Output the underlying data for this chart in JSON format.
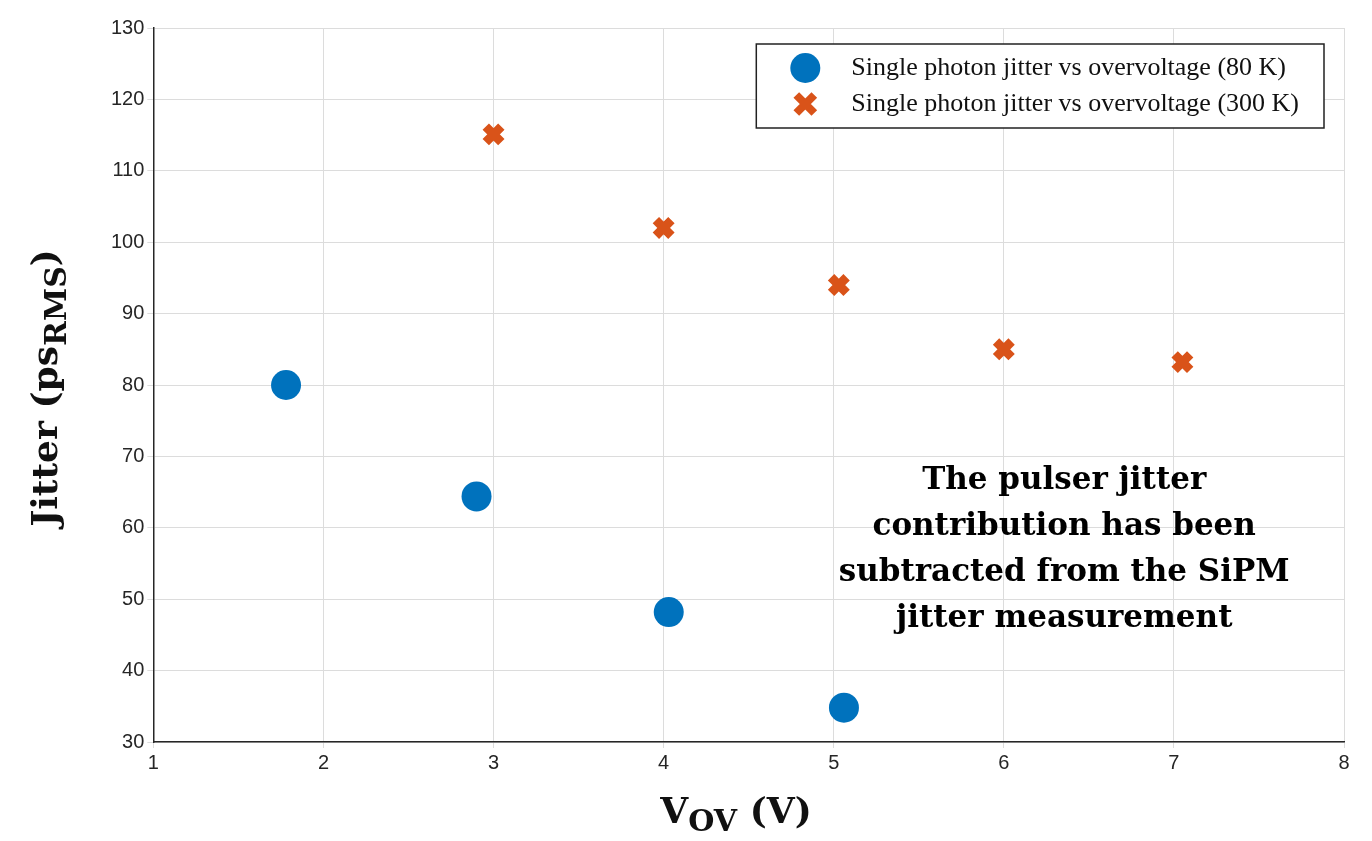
{
  "chart_data": {
    "type": "scatter",
    "xlabel": "V$_{OV}$ (V)",
    "ylabel": "Jitter (ps$_{RMS}$)",
    "series": [
      {
        "name": "Single photon jitter vs overvoltage (80 K)",
        "color": "#0072bd",
        "marker": "circle",
        "x": [
          1.78,
          2.9,
          4.03,
          5.06
        ],
        "values": [
          80,
          64.4,
          48.2,
          34.8
        ]
      },
      {
        "name": "Single photon jitter vs overvoltage (300 K)",
        "color": "#d95319",
        "marker": "cross",
        "x": [
          3.0,
          4.0,
          5.03,
          6.0,
          7.05
        ],
        "values": [
          115.1,
          102,
          94,
          85,
          83.2
        ]
      }
    ],
    "xlim": [
      1,
      8
    ],
    "xticks": [
      1,
      2,
      3,
      4,
      5,
      6,
      7,
      8
    ],
    "ylim": [
      30,
      130
    ],
    "yticks": [
      30,
      40,
      50,
      60,
      70,
      80,
      90,
      100,
      110,
      120,
      130
    ],
    "grid": true,
    "legend": "top right",
    "annotations": [
      "The pulser jitter contribution has been subtracted from the SiPM jitter measurement"
    ]
  }
}
